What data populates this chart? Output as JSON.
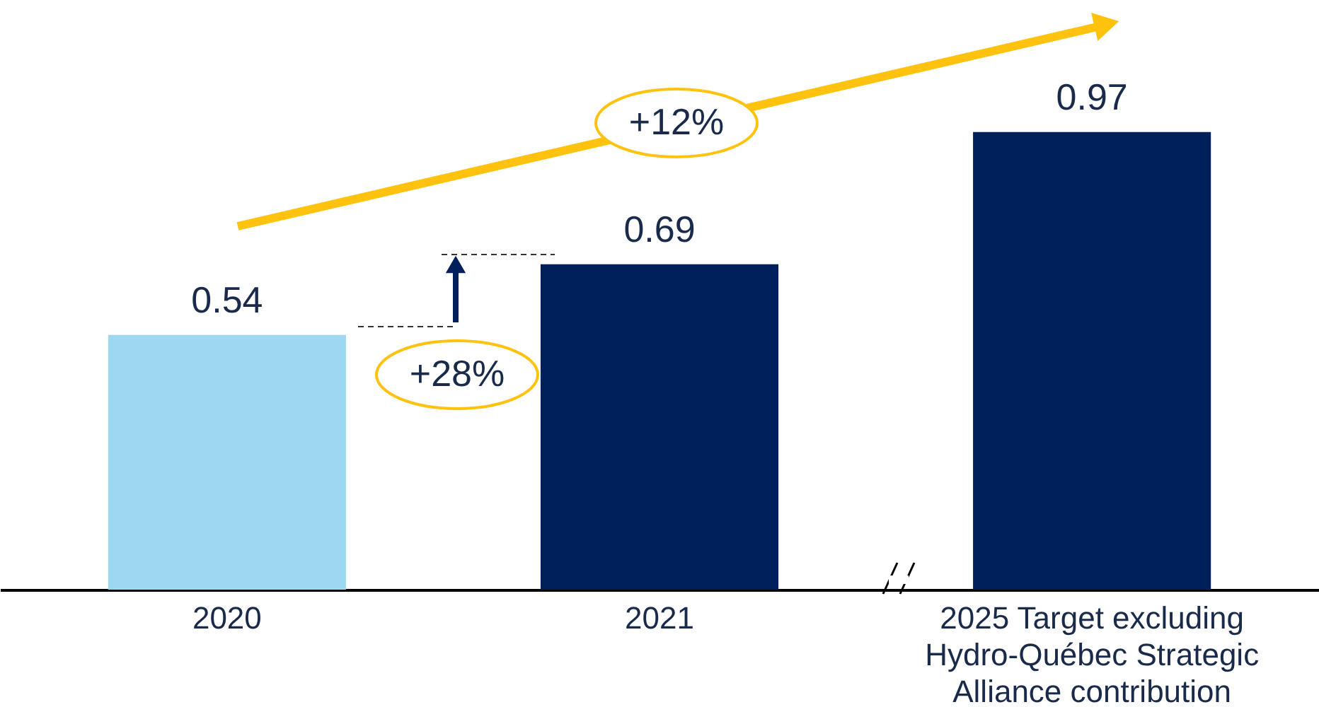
{
  "chart_data": {
    "type": "bar",
    "categories": [
      "2020",
      "2021",
      "2025 Target excluding Hydro-Québec Strategic Alliance contribution"
    ],
    "values": [
      0.54,
      0.69,
      0.97
    ],
    "colors": [
      "#9ed8f0",
      "#00205b",
      "#00205b"
    ],
    "ylim": [
      0,
      1.25
    ],
    "data_labels": true,
    "tick_labels": "x",
    "annotations": [
      "+12%",
      "+28%"
    ]
  }
}
